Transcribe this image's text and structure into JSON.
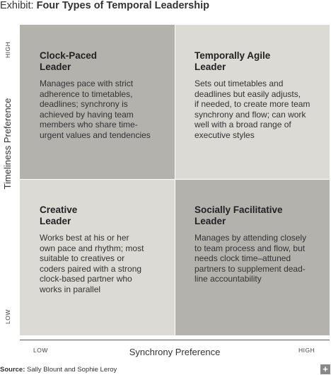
{
  "title": {
    "prefix": "Exhibit: ",
    "main": "Four Types of Temporal Leadership"
  },
  "axes": {
    "y_label": "Timeliness Preference",
    "y_high": "HIGH",
    "y_low": "LOW",
    "x_label": "Synchrony Preference",
    "x_low": "LOW",
    "x_high": "HIGH"
  },
  "quadrants": [
    {
      "title": "Clock-Paced\nLeader",
      "description": "Manages pace with strict\nadherence to timetables,\ndeadlines; synchrony is\nachieved by having team\nmembers who share time-\nurgent values and tendencies"
    },
    {
      "title": "Temporally Agile\nLeader",
      "description": "Sets out timetables and\ndeadlines but easily adjusts,\nif needed, to create more team\nsynchrony and flow; can work\nwell with a broad range of\nexecutive styles"
    },
    {
      "title": "Creative\nLeader",
      "description": "Works best at his or her\nown pace and rhythm; most\nsuitable to creatives or\ncoders paired with a strong\nclock-based partner who\nworks in parallel"
    },
    {
      "title": "Socially Facilitative\nLeader",
      "description": "Manages by attending closely\nto team process and flow, but\nneeds clock time–attuned\npartners to supplement dead-\nline accountability"
    }
  ],
  "source": {
    "label": "Source:",
    "text": " Sally Blount and Sophie Leroy"
  },
  "plus_button": {
    "glyph": "+",
    "icon": "plus-icon"
  }
}
